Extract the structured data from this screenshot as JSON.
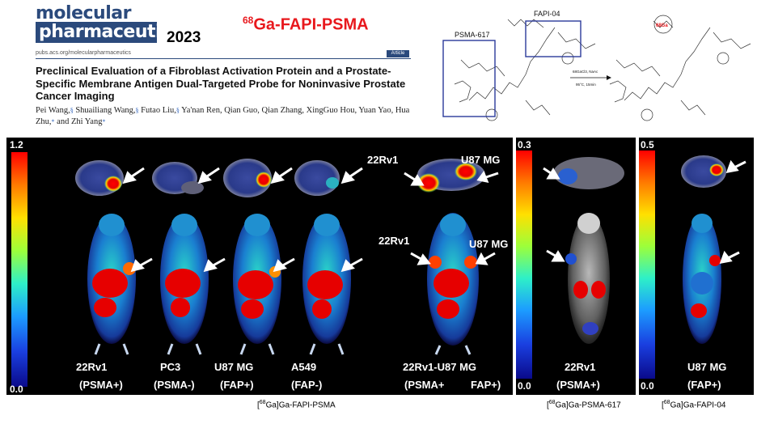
{
  "header": {
    "journal_logo_line1": "molecular",
    "journal_logo_line2": "pharmaceutics",
    "year": "2023",
    "probe_sup": "68",
    "probe_name": "Ga-FAPI-PSMA",
    "journal_url": "pubs.acs.org/molecularpharmaceutics",
    "article_badge": "Article",
    "paper_title": "Preclinical Evaluation of a Fibroblast Activation Protein and a Prostate-Specific Membrane Antigen Dual-Targeted Probe for Noninvasive Prostate Cancer Imaging",
    "authors": [
      {
        "name": "Pei Wang,",
        "aff": "§"
      },
      {
        "name": " Shuailiang Wang,",
        "aff": "§"
      },
      {
        "name": " Futao Liu,",
        "aff": "§"
      },
      {
        "name": " Ya'nan Ren, Qian Guo, Qian Zhang, XingGuo Hou, Yuan Yao, Hua Zhu,",
        "aff": "*"
      },
      {
        "name": " and Zhi Yang",
        "aff": "*"
      }
    ]
  },
  "scheme": {
    "psma617_label": "PSMA-617",
    "fapi04_label": "FAPI-04",
    "reagents_top": "68GaCl3, NaAc",
    "reagents_bottom": "95°C, 15min",
    "ga_label": "68Ga",
    "highlight_color": "#2a3a9a"
  },
  "panels": {
    "main": {
      "scale_max": "1.2",
      "scale_min": "0.0",
      "cohorts": [
        {
          "line": "22Rv1",
          "status": "(PSMA+)"
        },
        {
          "line": "PC3",
          "status": "(PSMA-)"
        },
        {
          "line": "U87 MG",
          "status": "(FAP+)"
        },
        {
          "line": "A549",
          "status": "(FAP-)"
        }
      ],
      "combined": {
        "line": "22Rv1-U87 MG",
        "status_left": "(PSMA+",
        "status_right": "FAP+)",
        "ct_left_label": "22Rv1",
        "ct_right_label": "U87 MG",
        "body_left_label": "22Rv1",
        "body_right_label": "U87 MG"
      },
      "caption_sup": "68",
      "caption_pre": "[",
      "caption_post": "Ga]Ga-FAPI-PSMA"
    },
    "psma617": {
      "scale_max": "0.3",
      "scale_min": "0.0",
      "line": "22Rv1",
      "status": "(PSMA+)",
      "caption_sup": "68",
      "caption_post": "Ga]Ga-PSMA-617"
    },
    "fapi04": {
      "scale_max": "0.5",
      "scale_min": "0.0",
      "line": "U87 MG",
      "status": "(FAP+)",
      "caption_sup": "68",
      "caption_post": "Ga]Ga-FAPI-04"
    }
  },
  "colors": {
    "journal_blue": "#2b4a7c",
    "probe_red": "#e8181d",
    "hot_red": "#e60000",
    "panel_bg": "#000000"
  }
}
